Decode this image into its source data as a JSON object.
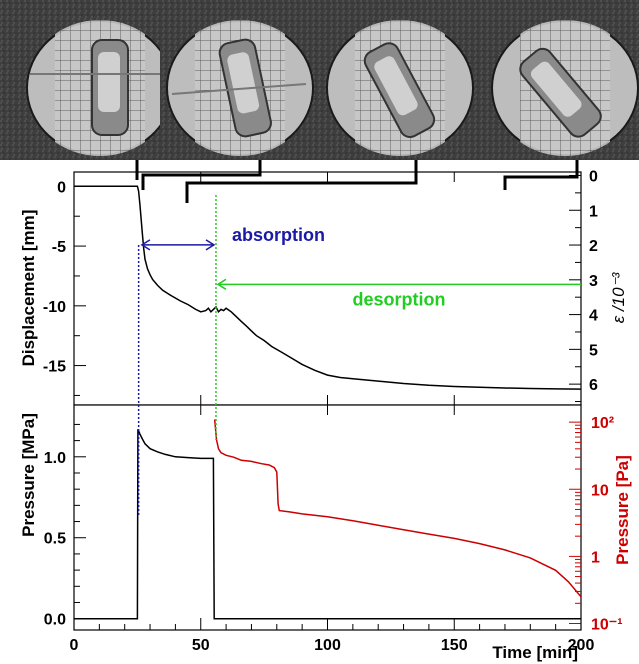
{
  "photo_strip": {
    "description_icon": "specimen-photo-icon",
    "panels": 4
  },
  "chart_data": [
    {
      "type": "line",
      "id": "displacement",
      "xlabel": "",
      "ylabel": "Displacement [mm]",
      "y2label": "ε /10⁻³",
      "xlim": [
        0,
        200
      ],
      "ylim": [
        -18.3,
        1.2
      ],
      "yticks": [
        0,
        -5,
        -10,
        -15
      ],
      "y2lim": [
        -0.1,
        6.6
      ],
      "y2ticks": [
        0,
        1,
        2,
        3,
        4,
        5,
        6
      ],
      "grid": false,
      "series": [
        {
          "color": "#000000",
          "x": [
            0,
            25,
            25.5,
            26,
            26.5,
            27,
            27.5,
            28,
            29,
            30,
            31,
            33,
            35,
            38,
            42,
            45,
            48,
            50,
            52,
            53,
            54,
            55,
            56,
            57,
            58,
            59,
            60,
            62,
            64,
            66,
            68,
            70,
            72,
            75,
            78,
            82,
            86,
            90,
            95,
            100,
            105,
            110,
            120,
            130,
            140,
            150,
            160,
            170,
            180,
            190,
            200
          ],
          "y": [
            0,
            0,
            -0.4,
            -1.5,
            -2.8,
            -4.0,
            -5.2,
            -6.1,
            -6.9,
            -7.4,
            -7.8,
            -8.3,
            -8.7,
            -9.1,
            -9.6,
            -9.9,
            -10.3,
            -10.5,
            -10.4,
            -10.2,
            -10.5,
            -10.3,
            -10.1,
            -10.5,
            -10.3,
            -10.4,
            -10.2,
            -10.5,
            -10.9,
            -11.3,
            -11.7,
            -12.1,
            -12.5,
            -12.9,
            -13.4,
            -13.9,
            -14.4,
            -14.9,
            -15.4,
            -15.8,
            -16.0,
            -16.1,
            -16.3,
            -16.5,
            -16.65,
            -16.75,
            -16.82,
            -16.88,
            -16.92,
            -16.95,
            -16.97
          ]
        }
      ],
      "annotations": [
        {
          "text": "absorption",
          "color": "#1a1aa6",
          "x_from": 26,
          "x_to": 56,
          "y": -4.9
        },
        {
          "text": "desorption",
          "color": "#22cc22",
          "x_from": 56,
          "x_to": 200,
          "y": -8.2
        }
      ]
    },
    {
      "type": "line",
      "id": "pressure",
      "xlabel": "Time [min]",
      "ylabel": "Pressure [MPa]",
      "y2label": "Pressure [Pa]",
      "xlim": [
        0,
        200
      ],
      "xticks": [
        0,
        50,
        100,
        150,
        200
      ],
      "ylim": [
        -0.07,
        1.32
      ],
      "yticks": [
        0.0,
        0.5,
        1.0
      ],
      "yticklabels": [
        "0.0",
        "0.5",
        "1.0"
      ],
      "y2scale": "log",
      "y2lim": [
        0.08,
        180
      ],
      "y2ticks": [
        0.1,
        1,
        10,
        100
      ],
      "y2ticklabels": [
        "10⁻¹",
        "1",
        "10",
        "10²"
      ],
      "grid": false,
      "series": [
        {
          "axis": "left",
          "color": "#000000",
          "x": [
            0,
            25,
            25.2,
            26,
            27,
            28,
            30,
            33,
            36,
            40,
            45,
            50,
            55,
            55.3,
            56,
            60,
            80,
            100,
            150,
            200
          ],
          "y": [
            0,
            0,
            1.17,
            1.14,
            1.11,
            1.08,
            1.05,
            1.03,
            1.015,
            1.0,
            0.995,
            0.99,
            0.99,
            0.0,
            0.0,
            0.0,
            0.0,
            0.0,
            0.0,
            0.0
          ]
        },
        {
          "axis": "right",
          "color": "#cc0000",
          "x": [
            55.5,
            55.8,
            56.2,
            57,
            58,
            60,
            63,
            66,
            70,
            74,
            77,
            78,
            79,
            80,
            80.5,
            81,
            85,
            90,
            100,
            110,
            120,
            130,
            140,
            150,
            160,
            170,
            180,
            190,
            195,
            200
          ],
          "y": [
            110,
            80,
            55,
            40,
            35,
            32,
            30,
            27,
            26,
            24,
            23,
            22,
            21,
            18,
            6,
            4.8,
            4.6,
            4.3,
            3.9,
            3.4,
            2.9,
            2.5,
            2.15,
            1.85,
            1.55,
            1.25,
            0.95,
            0.62,
            0.42,
            0.25
          ]
        }
      ]
    }
  ]
}
